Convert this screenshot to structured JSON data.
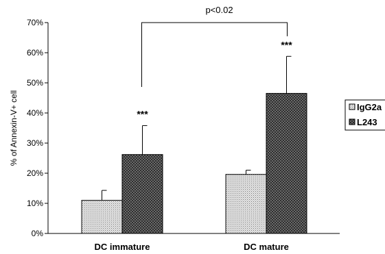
{
  "chart_data": {
    "type": "bar",
    "ylabel": "% of Annexin-V+ cell",
    "ylim": [
      0,
      70
    ],
    "yticks": [
      0,
      10,
      20,
      30,
      40,
      50,
      60,
      70
    ],
    "ytick_suffix": "%",
    "grid": false,
    "legend_position": "right",
    "categories": [
      "DC immature",
      "DC mature"
    ],
    "series": [
      {
        "name": "IgG2a",
        "values": [
          11,
          19.6
        ],
        "errors": [
          3.3,
          1.4
        ],
        "fill": "light-dotted"
      },
      {
        "name": "L243",
        "values": [
          26.2,
          46.5
        ],
        "errors": [
          9.6,
          12.3
        ],
        "fill": "dark-checkered"
      }
    ],
    "annotations": [
      {
        "text": "***",
        "category": 0,
        "series": 1
      },
      {
        "text": "***",
        "category": 1,
        "series": 1
      }
    ],
    "comparison": {
      "text": "p<0.02",
      "from_category": 0,
      "to_category": 1,
      "series": 1
    }
  }
}
